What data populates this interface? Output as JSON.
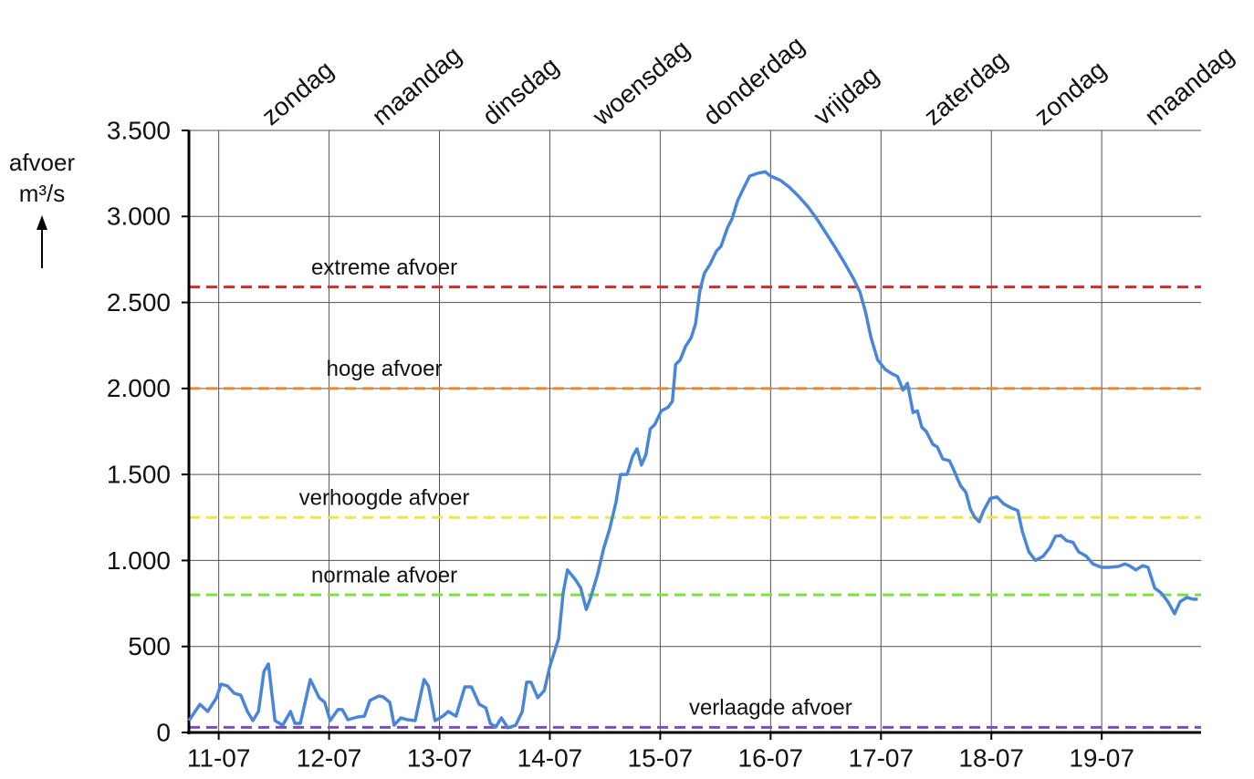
{
  "chart_data": {
    "type": "line",
    "y_label": [
      "afvoer",
      "m³/s"
    ],
    "xlim": [
      10.73,
      19.9
    ],
    "xticks": [
      {
        "value": 11,
        "label": "11-07"
      },
      {
        "value": 12,
        "label": "12-07"
      },
      {
        "value": 13,
        "label": "13-07"
      },
      {
        "value": 14,
        "label": "14-07"
      },
      {
        "value": 15,
        "label": "15-07"
      },
      {
        "value": 16,
        "label": "16-07"
      },
      {
        "value": 17,
        "label": "17-07"
      },
      {
        "value": 18,
        "label": "18-07"
      },
      {
        "value": 19,
        "label": "19-07"
      }
    ],
    "day_labels": [
      "zondag",
      "maandag",
      "dinsdag",
      "woensdag",
      "donderdag",
      "vrijdag",
      "zaterdag",
      "zondag",
      "maandag"
    ],
    "ylim": [
      0,
      3500
    ],
    "yticks": [
      0,
      500,
      {
        "value": 1000,
        "label": "1.000"
      },
      {
        "value": 1500,
        "label": "1.500"
      },
      {
        "value": 2000,
        "label": "2.000"
      },
      {
        "value": 2500,
        "label": "2.500"
      },
      {
        "value": 3000,
        "label": "3.000"
      },
      {
        "value": 3500,
        "label": "3.500"
      }
    ],
    "grid": true,
    "thresholds": [
      {
        "name": "extreme afvoer",
        "value": 2590,
        "color": "#d42a2a"
      },
      {
        "name": "hoge afvoer",
        "value": 2000,
        "color": "#e8892e"
      },
      {
        "name": "verhoogde afvoer",
        "value": 1250,
        "color": "#e6e84a"
      },
      {
        "name": "normale afvoer",
        "value": 800,
        "color": "#7ee03a"
      },
      {
        "name": "verlaagde afvoer",
        "value": 30,
        "color": "#7b4fc0"
      }
    ],
    "series": [
      {
        "color": "#4a86d8",
        "x": [
          10.73,
          10.83,
          10.9,
          10.98,
          11.02,
          11.08,
          11.14,
          11.2,
          11.26,
          11.31,
          11.36,
          11.41,
          11.45,
          11.51,
          11.58,
          11.65,
          11.69,
          11.74,
          11.83,
          11.91,
          11.96,
          12.01,
          12.08,
          12.12,
          12.17,
          12.26,
          12.32,
          12.37,
          12.45,
          12.49,
          12.55,
          12.59,
          12.65,
          12.71,
          12.78,
          12.86,
          12.9,
          12.96,
          13.03,
          13.08,
          13.15,
          13.23,
          13.29,
          13.36,
          13.42,
          13.46,
          13.51,
          13.56,
          13.62,
          13.69,
          13.75,
          13.79,
          13.83,
          13.89,
          13.95,
          14.0,
          14.08,
          14.12,
          14.16,
          14.23,
          14.28,
          14.33,
          14.37,
          14.43,
          14.49,
          14.54,
          14.6,
          14.64,
          14.7,
          14.75,
          14.79,
          14.83,
          14.87,
          14.91,
          14.95,
          15.01,
          15.07,
          15.11,
          15.14,
          15.18,
          15.23,
          15.28,
          15.32,
          15.36,
          15.4,
          15.45,
          15.51,
          15.55,
          15.61,
          15.65,
          15.7,
          15.76,
          15.81,
          15.88,
          15.95,
          16.0,
          16.09,
          16.17,
          16.25,
          16.34,
          16.42,
          16.5,
          16.58,
          16.67,
          16.75,
          16.81,
          16.86,
          16.91,
          16.97,
          17.04,
          17.1,
          17.15,
          17.2,
          17.24,
          17.29,
          17.33,
          17.37,
          17.41,
          17.47,
          17.51,
          17.56,
          17.62,
          17.66,
          17.72,
          17.77,
          17.81,
          17.85,
          17.89,
          17.93,
          17.99,
          18.05,
          18.11,
          18.18,
          18.24,
          18.28,
          18.34,
          18.4,
          18.47,
          18.53,
          18.58,
          18.63,
          18.68,
          18.74,
          18.79,
          18.86,
          18.92,
          19.0,
          19.06,
          19.15,
          19.21,
          19.25,
          19.31,
          19.37,
          19.42,
          19.48,
          19.54,
          19.6,
          19.66,
          19.71,
          19.77,
          19.83,
          19.87
        ],
        "values": [
          69,
          164,
          122,
          202,
          281,
          270,
          228,
          217,
          122,
          69,
          122,
          355,
          398,
          69,
          42,
          122,
          53,
          53,
          308,
          202,
          175,
          69,
          133,
          133,
          74,
          90,
          95,
          186,
          212,
          207,
          175,
          42,
          85,
          74,
          69,
          308,
          270,
          69,
          95,
          122,
          95,
          265,
          265,
          164,
          143,
          53,
          32,
          85,
          27,
          42,
          122,
          292,
          292,
          202,
          244,
          385,
          545,
          810,
          945,
          890,
          840,
          715,
          785,
          915,
          1075,
          1180,
          1340,
          1500,
          1500,
          1605,
          1650,
          1555,
          1615,
          1765,
          1790,
          1870,
          1890,
          1925,
          2140,
          2165,
          2245,
          2295,
          2375,
          2570,
          2670,
          2720,
          2800,
          2825,
          2935,
          2985,
          3090,
          3170,
          3235,
          3250,
          3260,
          3235,
          3210,
          3170,
          3120,
          3055,
          2985,
          2905,
          2825,
          2730,
          2640,
          2560,
          2445,
          2295,
          2165,
          2110,
          2085,
          2070,
          1990,
          2030,
          1860,
          1870,
          1775,
          1750,
          1675,
          1660,
          1590,
          1580,
          1525,
          1435,
          1395,
          1300,
          1250,
          1225,
          1290,
          1360,
          1370,
          1330,
          1305,
          1290,
          1170,
          1050,
          1000,
          1025,
          1075,
          1140,
          1145,
          1115,
          1105,
          1050,
          1025,
          980,
          960,
          960,
          965,
          980,
          970,
          945,
          970,
          960,
          840,
          810,
          760,
          690,
          760,
          785,
          775,
          775
        ]
      }
    ]
  }
}
